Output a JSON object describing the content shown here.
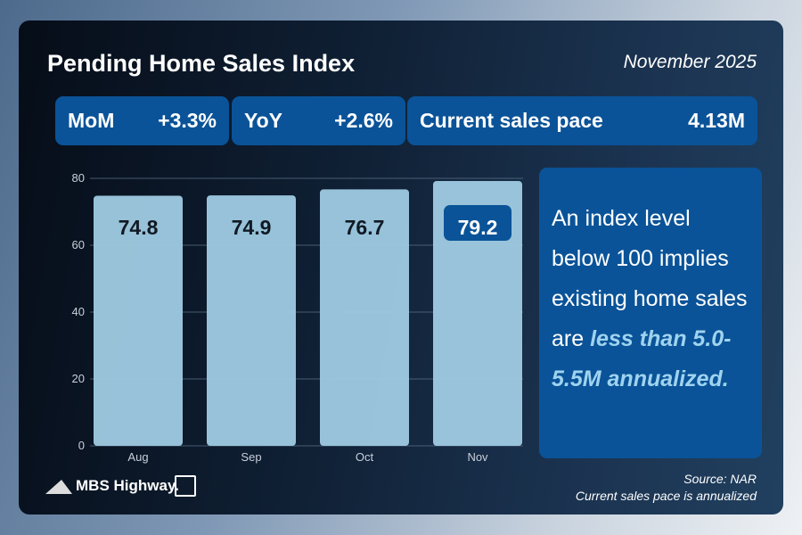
{
  "header": {
    "title": "Pending Home Sales Index",
    "date": "November 2025"
  },
  "stats": {
    "mom_label": "MoM",
    "mom_value": "+3.3%",
    "yoy_label": "YoY",
    "yoy_value": "+2.6%",
    "pace_label": "Current sales pace",
    "pace_value": "4.13M"
  },
  "note": {
    "text1": "An index level below 100 implies existing home sales are ",
    "emph": "less than 5.0-5.5M annualized."
  },
  "footer": {
    "brand": "MBS Highway.",
    "source": "Source: NAR",
    "pace_note": "Current sales pace is annualized"
  },
  "chart_data": {
    "type": "bar",
    "categories": [
      "Aug",
      "Sep",
      "Oct",
      "Nov"
    ],
    "values": [
      74.8,
      74.9,
      76.7,
      79.2
    ],
    "data_labels": [
      "74.8",
      "74.9",
      "76.7",
      "79.2"
    ],
    "highlight_index": 3,
    "ylim": [
      0,
      80
    ],
    "yticks": [
      0,
      20,
      40,
      60,
      80
    ],
    "title": "",
    "xlabel": "",
    "ylabel": "",
    "grid": true,
    "bar_color": "#9fcbe3",
    "highlight_color": "#0a5398"
  }
}
